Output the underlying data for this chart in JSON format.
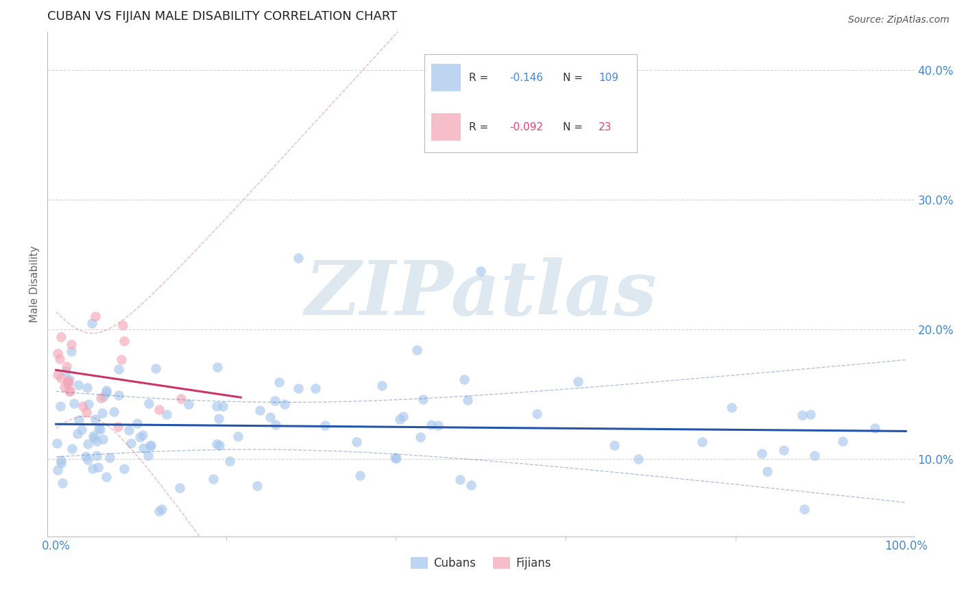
{
  "title": "CUBAN VS FIJIAN MALE DISABILITY CORRELATION CHART",
  "source": "Source: ZipAtlas.com",
  "ylabel": "Male Disability",
  "xlim": [
    -0.01,
    1.01
  ],
  "ylim": [
    0.04,
    0.43
  ],
  "yticks": [
    0.1,
    0.2,
    0.3,
    0.4
  ],
  "ytick_labels": [
    "10.0%",
    "20.0%",
    "30.0%",
    "40.0%"
  ],
  "xtick_labels": [
    "0.0%",
    "100.0%"
  ],
  "xtick_pos": [
    0.0,
    1.0
  ],
  "cuban_color": "#a8c8ed",
  "fijian_color": "#f4a8b8",
  "cuban_line_color": "#2255aa",
  "fijian_line_color": "#cc3366",
  "cuban_r": -0.146,
  "cuban_n": 109,
  "fijian_r": -0.092,
  "fijian_n": 23,
  "background_color": "#ffffff",
  "grid_color": "#cccccc",
  "title_color": "#222222",
  "axis_label_color": "#666666",
  "tick_color": "#4488cc",
  "legend_r_color_cuban": "#4488dd",
  "legend_r_color_fijian": "#dd4477",
  "watermark_color": "#dde8f0"
}
